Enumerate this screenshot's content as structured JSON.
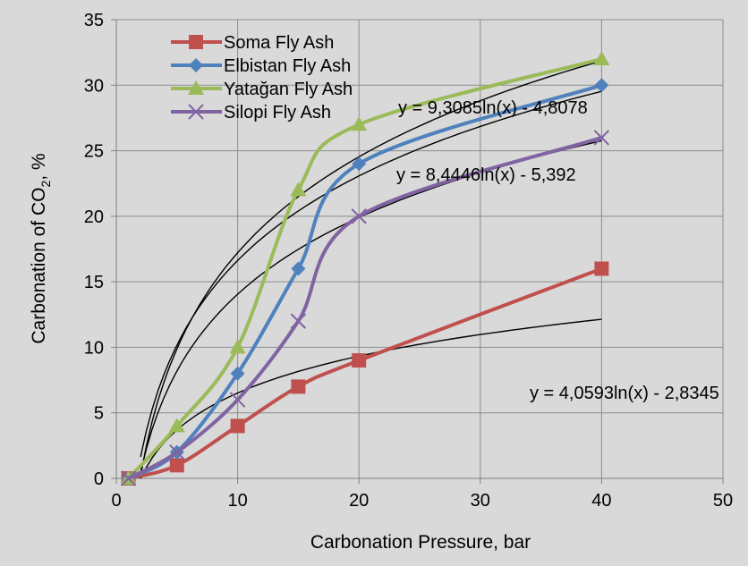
{
  "chart_data": {
    "type": "line",
    "title": "",
    "xlabel": "Carbonation Pressure, bar",
    "ylabel_main": "Carbonation of CO",
    "ylabel_sub": "2",
    "ylabel_tail": ", %",
    "xlim": [
      0,
      50
    ],
    "ylim": [
      0,
      35
    ],
    "x_ticks": [
      "0",
      "10",
      "20",
      "30",
      "40",
      "50"
    ],
    "y_ticks": [
      "0",
      "5",
      "10",
      "15",
      "20",
      "25",
      "30",
      "35"
    ],
    "grid": true,
    "legend_position": "top-left",
    "x": [
      1,
      5,
      10,
      15,
      20,
      40
    ],
    "series": [
      {
        "name": "Soma Fly Ash",
        "color": "#c0504d",
        "marker": "square",
        "values": [
          0,
          1,
          4,
          7,
          9,
          16
        ]
      },
      {
        "name": "Elbistan Fly Ash",
        "color": "#4f81bd",
        "marker": "diamond",
        "values": [
          0,
          2,
          8,
          16,
          24,
          30
        ]
      },
      {
        "name": "Yatağan Fly Ash",
        "color": "#9bbb59",
        "marker": "triangle",
        "values": [
          0,
          4,
          10,
          22,
          27,
          32
        ]
      },
      {
        "name": "Silopi Fly Ash",
        "color": "#8064a2",
        "marker": "x",
        "values": [
          0,
          2,
          6,
          12,
          20,
          26
        ]
      }
    ],
    "trendlines": [
      {
        "label": "y = 9,3085ln(x) - 4,8078",
        "a": 9.3085,
        "b": -4.8078,
        "x_range": [
          2,
          40
        ]
      },
      {
        "label": "y = 8,4446ln(x) - 5,392",
        "a": 8.4446,
        "b": -5.392,
        "x_range": [
          2,
          40
        ]
      },
      {
        "label": "y = 4,0593ln(x) - 2,8345",
        "a": 4.0593,
        "b": -2.8345,
        "x_range": [
          2,
          40
        ]
      },
      {
        "label": "",
        "a": 10.56,
        "b": -7.1,
        "x_range": [
          2,
          40
        ]
      }
    ]
  }
}
